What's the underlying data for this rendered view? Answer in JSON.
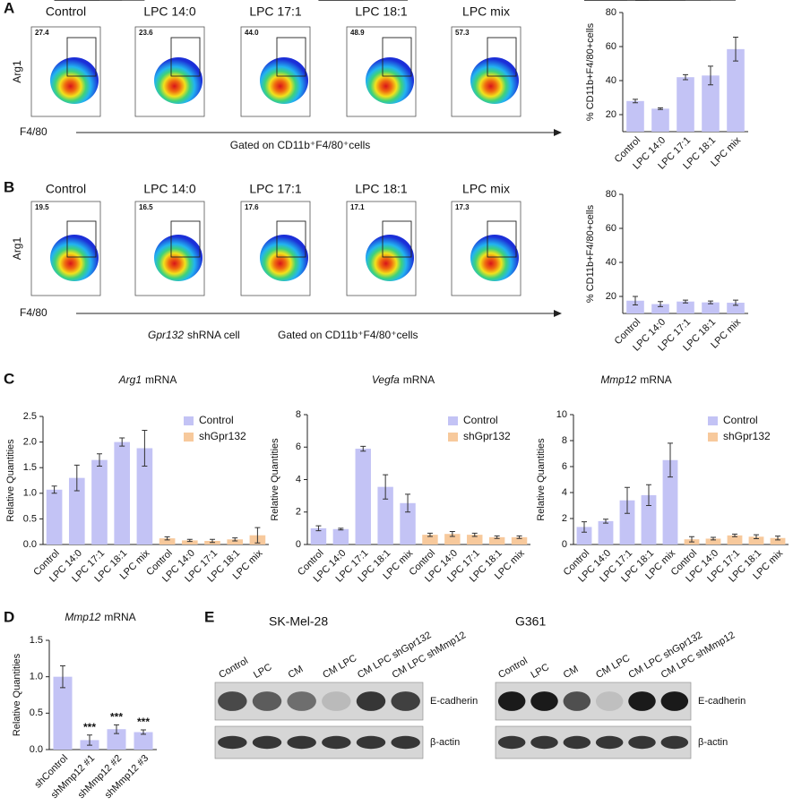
{
  "panel_labels": [
    "A",
    "B",
    "C",
    "D",
    "E"
  ],
  "flow": [
    {
      "conditions": [
        "Control",
        "LPC 14:0",
        "LPC 17:1",
        "LPC 18:1",
        "LPC mix"
      ],
      "gates": [
        "27.4",
        "23.6",
        "44.0",
        "48.9",
        "57.3"
      ],
      "y_label": "Arg1",
      "x_label": "F4/80",
      "gating": "Gated on CD11b⁺F4/80⁺cells"
    },
    {
      "conditions": [
        "Control",
        "LPC 14:0",
        "LPC 17:1",
        "LPC 18:1",
        "LPC mix"
      ],
      "gates": [
        "19.5",
        "16.5",
        "17.6",
        "17.1",
        "17.3"
      ],
      "y_label": "Arg1",
      "x_label": "F4/80",
      "cell_gene": "Gpr132",
      "cell_text": "shRNA cell",
      "gating": "Gated on CD11b⁺F4/80⁺cells"
    }
  ],
  "chart_data": [
    {
      "type": "bar",
      "y_label": "% CD11b+F4/80+cells",
      "categories": [
        "Control",
        "LPC 14:0",
        "LPC 17:1",
        "LPC 18:1",
        "LPC mix"
      ],
      "values": [
        28,
        23.5,
        42,
        43,
        58.5
      ],
      "errors": [
        1,
        0.5,
        1.5,
        5.5,
        7
      ],
      "color": "#c3c3f5",
      "ylim": [
        10,
        80
      ],
      "yticks": [
        20,
        40,
        60,
        80
      ],
      "annotations": [
        "**",
        "**",
        "***"
      ]
    },
    {
      "type": "bar",
      "y_label": "% CD11b+F4/80+cells",
      "categories": [
        "Control",
        "LPC 14:0",
        "LPC 17:1",
        "LPC 18:1",
        "LPC mix"
      ],
      "values": [
        17.5,
        15.5,
        17,
        16.5,
        16.3
      ],
      "errors": [
        2.5,
        1.5,
        0.8,
        0.8,
        1.5
      ],
      "color": "#c3c3f5",
      "ylim": [
        10,
        80
      ],
      "yticks": [
        20,
        40,
        60,
        80
      ]
    },
    {
      "type": "bar",
      "title_gene": "Arg1",
      "title_text": "mRNA",
      "y_label": "Relative Quantities",
      "categories": [
        "Control",
        "LPC 14:0",
        "LPC 17:1",
        "LPC 18:1",
        "LPC mix",
        "Control",
        "LPC 14:0",
        "LPC 17:1",
        "LPC 18:1",
        "LPC mix"
      ],
      "series": [
        {
          "name": "Control",
          "color": "#c3c3f5",
          "values": [
            1.07,
            1.3,
            1.65,
            2.0,
            1.88,
            null,
            null,
            null,
            null,
            null
          ],
          "errors": [
            0.07,
            0.25,
            0.12,
            0.08,
            0.35,
            null,
            null,
            null,
            null,
            null
          ]
        },
        {
          "name": "shGpr132",
          "color": "#f7c99c",
          "values": [
            null,
            null,
            null,
            null,
            null,
            0.12,
            0.08,
            0.07,
            0.1,
            0.18
          ],
          "errors": [
            null,
            null,
            null,
            null,
            null,
            0.03,
            0.02,
            0.03,
            0.03,
            0.15
          ]
        }
      ],
      "ylim": [
        0,
        2.5
      ],
      "yticks": [
        {
          "value": 0,
          "label": "0.0"
        },
        0.5,
        {
          "value": 1,
          "label": "1.0"
        },
        1.5,
        {
          "value": 2,
          "label": "2.0"
        },
        2.5
      ],
      "annotations": [
        "***",
        "***",
        "***"
      ]
    },
    {
      "type": "bar",
      "title_gene": "Vegfa",
      "title_text": "mRNA",
      "y_label": "Relative Quantities",
      "categories": [
        "Control",
        "LPC 14:0",
        "LPC 17:1",
        "LPC 18:1",
        "LPC mix",
        "Control",
        "LPC 14:0",
        "LPC 17:1",
        "LPC 18:1",
        "LPC mix"
      ],
      "series": [
        {
          "name": "Control",
          "color": "#c3c3f5",
          "values": [
            1.0,
            0.95,
            5.9,
            3.55,
            2.55,
            null,
            null,
            null,
            null,
            null
          ],
          "errors": [
            0.15,
            0.05,
            0.15,
            0.75,
            0.55,
            null,
            null,
            null,
            null,
            null
          ]
        },
        {
          "name": "shGpr132",
          "color": "#f7c99c",
          "values": [
            null,
            null,
            null,
            null,
            null,
            0.6,
            0.65,
            0.6,
            0.45,
            0.45
          ],
          "errors": [
            null,
            null,
            null,
            null,
            null,
            0.1,
            0.15,
            0.1,
            0.08,
            0.08
          ]
        }
      ],
      "ylim": [
        0,
        8
      ],
      "yticks": [
        0,
        2,
        4,
        6,
        8
      ],
      "annotations": [
        "***",
        "***",
        "***"
      ]
    },
    {
      "type": "bar",
      "title_gene": "Mmp12",
      "title_text": "mRNA",
      "y_label": "Relative Quantities",
      "categories": [
        "Control",
        "LPC 14:0",
        "LPC 17:1",
        "LPC 18:1",
        "LPC mix",
        "Control",
        "LPC 14:0",
        "LPC 17:1",
        "LPC 18:1",
        "LPC mix"
      ],
      "series": [
        {
          "name": "Control",
          "color": "#c3c3f5",
          "values": [
            1.35,
            1.8,
            3.4,
            3.8,
            6.5,
            null,
            null,
            null,
            null,
            null
          ],
          "errors": [
            0.4,
            0.15,
            1.0,
            0.8,
            1.3,
            null,
            null,
            null,
            null,
            null
          ]
        },
        {
          "name": "shGpr132",
          "color": "#f7c99c",
          "values": [
            null,
            null,
            null,
            null,
            null,
            0.4,
            0.45,
            0.7,
            0.6,
            0.5
          ],
          "errors": [
            null,
            null,
            null,
            null,
            null,
            0.2,
            0.1,
            0.1,
            0.15,
            0.15
          ]
        }
      ],
      "ylim": [
        0,
        10
      ],
      "yticks": [
        0,
        2,
        4,
        6,
        8,
        10
      ],
      "annotations": [
        "**",
        "***",
        "***"
      ]
    },
    {
      "type": "bar",
      "title_gene": "Mmp12",
      "title_text": "mRNA",
      "y_label": "Relative Quantities",
      "categories": [
        "shControl",
        "shMmp12 #1",
        "shMmp12 #2",
        "shMmp12 #3"
      ],
      "values": [
        1.0,
        0.13,
        0.28,
        0.24
      ],
      "errors": [
        0.15,
        0.07,
        0.06,
        0.03
      ],
      "color": "#c3c3f5",
      "ylim": [
        0,
        1.5
      ],
      "yticks": [
        {
          "value": 0,
          "label": "0.0"
        },
        0.5,
        {
          "value": 1,
          "label": "1.0"
        },
        1.5
      ],
      "annotations": [
        "***",
        "***",
        "***"
      ]
    }
  ],
  "blots": [
    {
      "cell_line": "SK-Mel-28",
      "lanes": [
        "Control",
        "LPC",
        "CM",
        "CM LPC",
        "CM LPC shGpr132",
        "CM LPC shMmp12"
      ],
      "proteins": [
        "E-cadherin",
        "β-actin"
      ]
    },
    {
      "cell_line": "G361",
      "lanes": [
        "Control",
        "LPC",
        "CM",
        "CM LPC",
        "CM LPC shGpr132",
        "CM LPC shMmp12"
      ],
      "proteins": [
        "E-cadherin",
        "β-actin"
      ]
    }
  ]
}
